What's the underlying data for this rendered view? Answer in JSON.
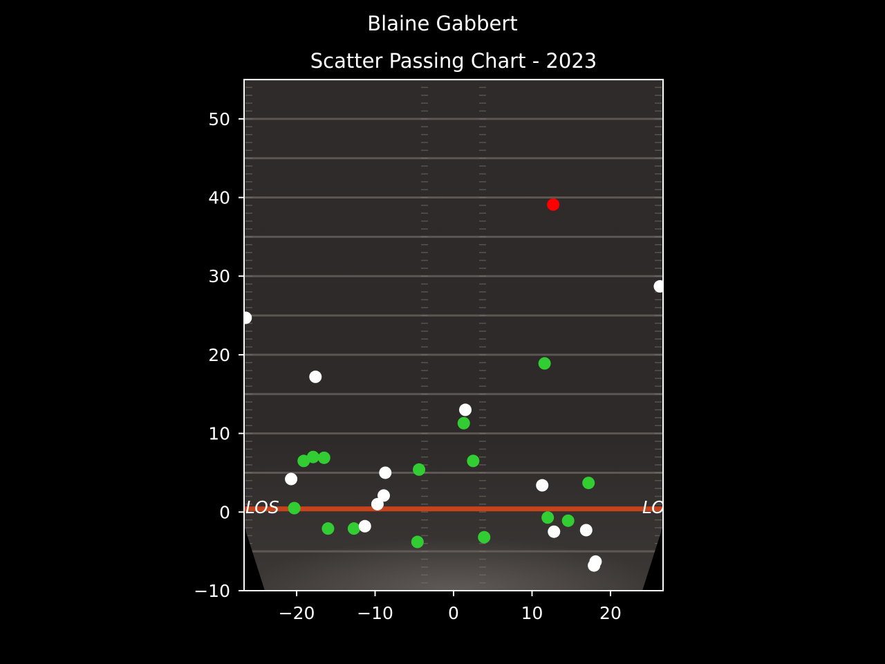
{
  "chart_data": {
    "type": "scatter",
    "suptitle": "Blaine Gabbert",
    "title": "Scatter Passing Chart - 2023",
    "xlabel": "",
    "ylabel": "",
    "xlim": [
      -26.7,
      26.7
    ],
    "ylim": [
      -10,
      55
    ],
    "xticks": [
      -20,
      -10,
      0,
      10,
      20
    ],
    "yticks": [
      -10,
      0,
      10,
      20,
      30,
      40,
      50
    ],
    "xtick_labels": [
      "−20",
      "−10",
      "0",
      "10",
      "20"
    ],
    "ytick_labels": [
      "−10",
      "0",
      "10",
      "20",
      "30",
      "40",
      "50"
    ],
    "grid": false,
    "background": "football field image",
    "field_text": "LOS",
    "colors": {
      "complete": "#32cd32",
      "incomplete": "#ffffff",
      "interception": "#ff0000",
      "background": "#000000",
      "line_of_scrimmage": "#d9451a"
    },
    "series": [
      {
        "color": "#32cd32",
        "points": [
          {
            "x": -20.3,
            "y": 0.5
          },
          {
            "x": -19.1,
            "y": 6.5
          },
          {
            "x": -17.9,
            "y": 7.0
          },
          {
            "x": -16.5,
            "y": 6.9
          },
          {
            "x": -16.0,
            "y": -2.1
          },
          {
            "x": -12.7,
            "y": -2.1
          },
          {
            "x": -4.4,
            "y": 5.4
          },
          {
            "x": -4.6,
            "y": -3.8
          },
          {
            "x": 1.3,
            "y": 11.3
          },
          {
            "x": 2.5,
            "y": 6.5
          },
          {
            "x": 3.9,
            "y": -3.2
          },
          {
            "x": 11.6,
            "y": 18.9
          },
          {
            "x": 12.0,
            "y": -0.7
          },
          {
            "x": 14.6,
            "y": -1.1
          },
          {
            "x": 17.2,
            "y": 3.7
          }
        ]
      },
      {
        "color": "#ffffff",
        "points": [
          {
            "x": -26.5,
            "y": 24.7
          },
          {
            "x": -17.6,
            "y": 17.2
          },
          {
            "x": -20.7,
            "y": 4.2
          },
          {
            "x": -8.7,
            "y": 5.0
          },
          {
            "x": -8.9,
            "y": 2.1
          },
          {
            "x": -9.7,
            "y": 1.0
          },
          {
            "x": -11.3,
            "y": -1.8
          },
          {
            "x": 1.5,
            "y": 13.0
          },
          {
            "x": 11.3,
            "y": 3.4
          },
          {
            "x": 12.8,
            "y": -2.5
          },
          {
            "x": 16.9,
            "y": -2.3
          },
          {
            "x": 18.1,
            "y": -6.3
          },
          {
            "x": 17.9,
            "y": -6.8
          },
          {
            "x": 26.3,
            "y": 28.7
          }
        ]
      },
      {
        "color": "#ff0000",
        "points": [
          {
            "x": 12.7,
            "y": 39.1
          }
        ]
      }
    ]
  }
}
